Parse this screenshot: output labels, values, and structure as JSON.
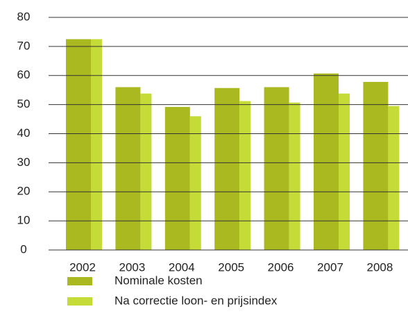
{
  "chart_data": {
    "type": "bar",
    "categories": [
      "2002",
      "2003",
      "2004",
      "2005",
      "2006",
      "2007",
      "2008"
    ],
    "series": [
      {
        "name": "Nominale kosten",
        "color": "#a9b91f",
        "values": [
          72.5,
          56,
          49.2,
          55.7,
          56,
          60.7,
          57.8
        ]
      },
      {
        "name": "Na correctie loon- en prijsindex",
        "color": "#c5dc38",
        "values": [
          72.5,
          53.8,
          46,
          51.2,
          50.7,
          53.8,
          49.5
        ]
      }
    ],
    "ylim": [
      0,
      80
    ],
    "yticks": [
      0,
      10,
      20,
      30,
      40,
      50,
      60,
      70,
      80
    ],
    "grid": true
  }
}
